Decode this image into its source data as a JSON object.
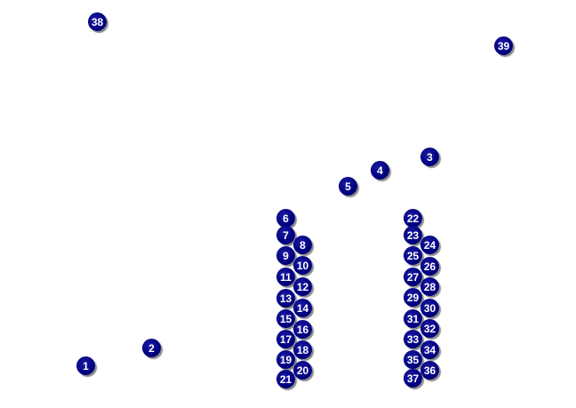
{
  "marker_color": "#000080",
  "markers": [
    "1",
    "2",
    "3",
    "4",
    "5",
    "6",
    "7",
    "8",
    "9",
    "10",
    "11",
    "12",
    "13",
    "14",
    "15",
    "16",
    "17",
    "18",
    "19",
    "20",
    "21",
    "22",
    "23",
    "24",
    "25",
    "26",
    "27",
    "28",
    "29",
    "30",
    "31",
    "32",
    "33",
    "34",
    "35",
    "36",
    "37",
    "38",
    "39"
  ]
}
